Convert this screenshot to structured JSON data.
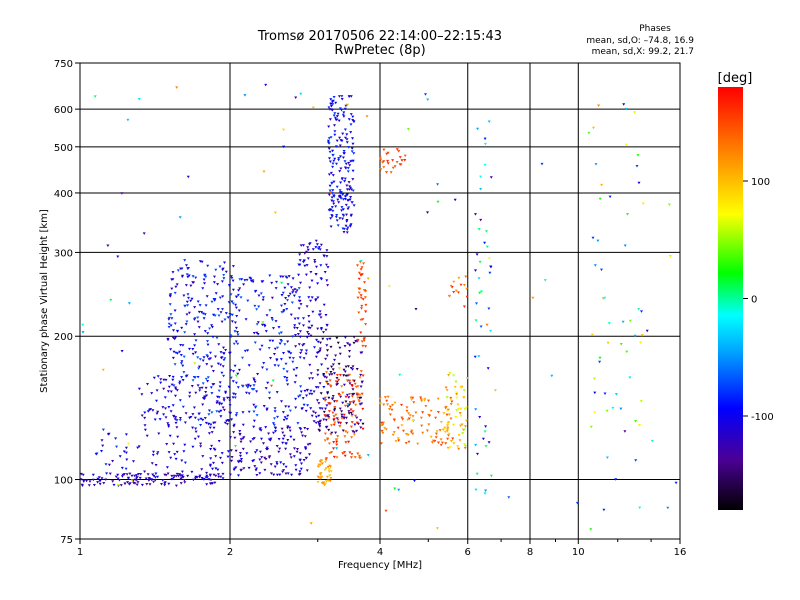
{
  "chart_data": {
    "type": "scatter",
    "title": "Tromsø 20170506 22:14:00–22:15:43",
    "subtitle": "RwPretec (8p)",
    "stats": {
      "heading": "Phases",
      "o_line": "mean, sd,O: –74.8, 16.9",
      "x_line": "mean, sd,X:  99.2, 21.7"
    },
    "xlabel": "Frequency [MHz]",
    "ylabel": "Stationary phase Virtual Height [km]",
    "x_scale": "log",
    "y_scale": "log",
    "xlim": [
      1,
      16
    ],
    "ylim": [
      75,
      750
    ],
    "x_ticks": [
      1,
      2,
      4,
      6,
      8,
      10,
      16
    ],
    "x_tick_labels": [
      "1",
      "2",
      "4",
      "6",
      "8",
      "10",
      "16"
    ],
    "x_grid": [
      2,
      4,
      6,
      8,
      10
    ],
    "x_minor_ticks": [
      3,
      5,
      7,
      9,
      12,
      14
    ],
    "y_ticks": [
      75,
      100,
      200,
      300,
      400,
      500,
      600,
      750
    ],
    "y_tick_labels": [
      "75",
      "100",
      "200",
      "300",
      "400",
      "500",
      "600",
      "750"
    ],
    "y_grid": [
      100,
      200,
      300,
      400,
      500,
      600
    ],
    "grid": true,
    "colorbar": {
      "label": "[deg]",
      "min": -180,
      "max": 180,
      "ticks": [
        100,
        0,
        -100
      ],
      "tick_labels": [
        "100",
        "0",
        "-100"
      ]
    },
    "clusters": [
      {
        "f0": 1.0,
        "f1": 1.9,
        "h0": 97,
        "h1": 103,
        "n": 120,
        "phase": -120,
        "jitter": 20
      },
      {
        "f0": 1.05,
        "f1": 1.3,
        "h0": 100,
        "h1": 130,
        "n": 25,
        "phase": -100,
        "jitter": 30
      },
      {
        "f0": 1.3,
        "f1": 2.0,
        "h0": 100,
        "h1": 165,
        "n": 150,
        "phase": -110,
        "jitter": 25
      },
      {
        "f0": 1.5,
        "f1": 2.05,
        "h0": 130,
        "h1": 290,
        "n": 260,
        "phase": -95,
        "jitter": 30
      },
      {
        "f0": 2.0,
        "f1": 2.9,
        "h0": 102,
        "h1": 130,
        "n": 140,
        "phase": -115,
        "jitter": 25
      },
      {
        "f0": 2.0,
        "f1": 2.8,
        "h0": 130,
        "h1": 270,
        "n": 220,
        "phase": -95,
        "jitter": 30
      },
      {
        "f0": 2.7,
        "f1": 3.15,
        "h0": 130,
        "h1": 320,
        "n": 150,
        "phase": -110,
        "jitter": 25
      },
      {
        "f0": 3.15,
        "f1": 3.55,
        "h0": 330,
        "h1": 640,
        "n": 200,
        "phase": -100,
        "jitter": 25
      },
      {
        "f0": 3.0,
        "f1": 3.7,
        "h0": 125,
        "h1": 200,
        "n": 140,
        "phase": -140,
        "jitter": 30
      },
      {
        "f0": 3.1,
        "f1": 3.7,
        "h0": 110,
        "h1": 170,
        "n": 110,
        "phase": 150,
        "jitter": 30
      },
      {
        "f0": 3.0,
        "f1": 3.2,
        "h0": 97,
        "h1": 110,
        "n": 40,
        "phase": 110,
        "jitter": 20
      },
      {
        "f0": 3.6,
        "f1": 3.75,
        "h0": 190,
        "h1": 300,
        "n": 40,
        "phase": 150,
        "jitter": 20
      },
      {
        "f0": 4.0,
        "f1": 5.6,
        "h0": 118,
        "h1": 150,
        "n": 100,
        "phase": 130,
        "jitter": 30
      },
      {
        "f0": 5.4,
        "f1": 6.0,
        "h0": 115,
        "h1": 170,
        "n": 60,
        "phase": 90,
        "jitter": 40
      },
      {
        "f0": 4.0,
        "f1": 4.5,
        "h0": 440,
        "h1": 500,
        "n": 25,
        "phase": 150,
        "jitter": 20
      },
      {
        "f0": 5.5,
        "f1": 6.0,
        "h0": 230,
        "h1": 270,
        "n": 15,
        "phase": 140,
        "jitter": 30
      },
      {
        "f0": 6.2,
        "f1": 6.7,
        "h0": 80,
        "h1": 640,
        "n": 45,
        "phase": -60,
        "jitter": 80
      },
      {
        "f0": 10.5,
        "f1": 13.5,
        "h0": 78,
        "h1": 620,
        "n": 50,
        "phase": 0,
        "jitter": 110
      },
      {
        "f0": 1.0,
        "f1": 16.0,
        "h0": 78,
        "h1": 700,
        "n": 90,
        "phase": 0,
        "jitter": 150
      }
    ]
  }
}
